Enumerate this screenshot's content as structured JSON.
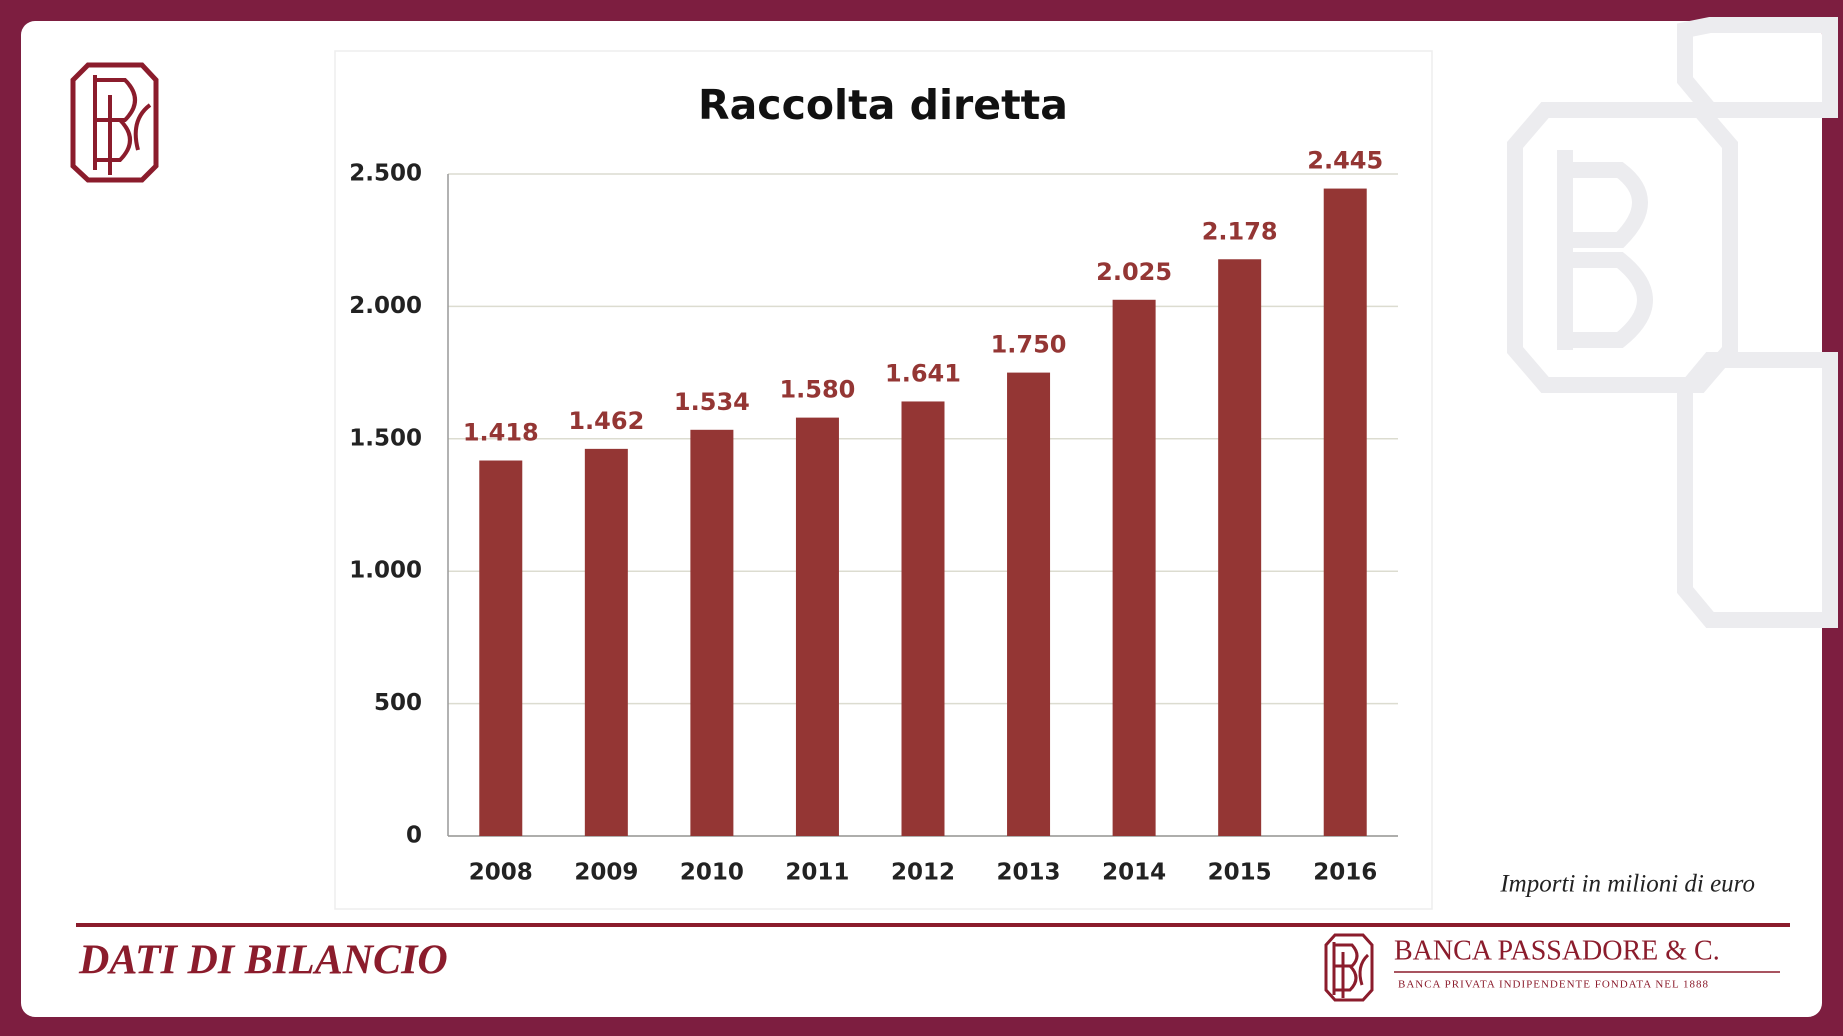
{
  "chart_data": {
    "type": "bar",
    "title": "Raccolta diretta",
    "categories": [
      "2008",
      "2009",
      "2010",
      "2011",
      "2012",
      "2013",
      "2014",
      "2015",
      "2016"
    ],
    "values": [
      1418,
      1462,
      1534,
      1580,
      1641,
      1750,
      2025,
      2178,
      2445
    ],
    "value_labels": [
      "1.418",
      "1.462",
      "1.534",
      "1.580",
      "1.641",
      "1.750",
      "2.025",
      "2.178",
      "2.445"
    ],
    "color": "#943634",
    "ylim": [
      0,
      2500
    ],
    "yticks": [
      0,
      500,
      {
        "value": 1000,
        "label": "1.000"
      },
      {
        "value": 1500,
        "label": "1.500"
      },
      {
        "value": 2000,
        "label": "2.000"
      },
      {
        "value": 2500,
        "label": "2.500"
      }
    ],
    "grid": true
  },
  "slide": {
    "note": "Importi in milioni di euro",
    "section": "DATI DI BILANCIO",
    "bank_name": "BANCA PASSADORE & C.",
    "tagline": "BANCA PRIVATA INDIPENDENTE FONDATA NEL 1888"
  }
}
